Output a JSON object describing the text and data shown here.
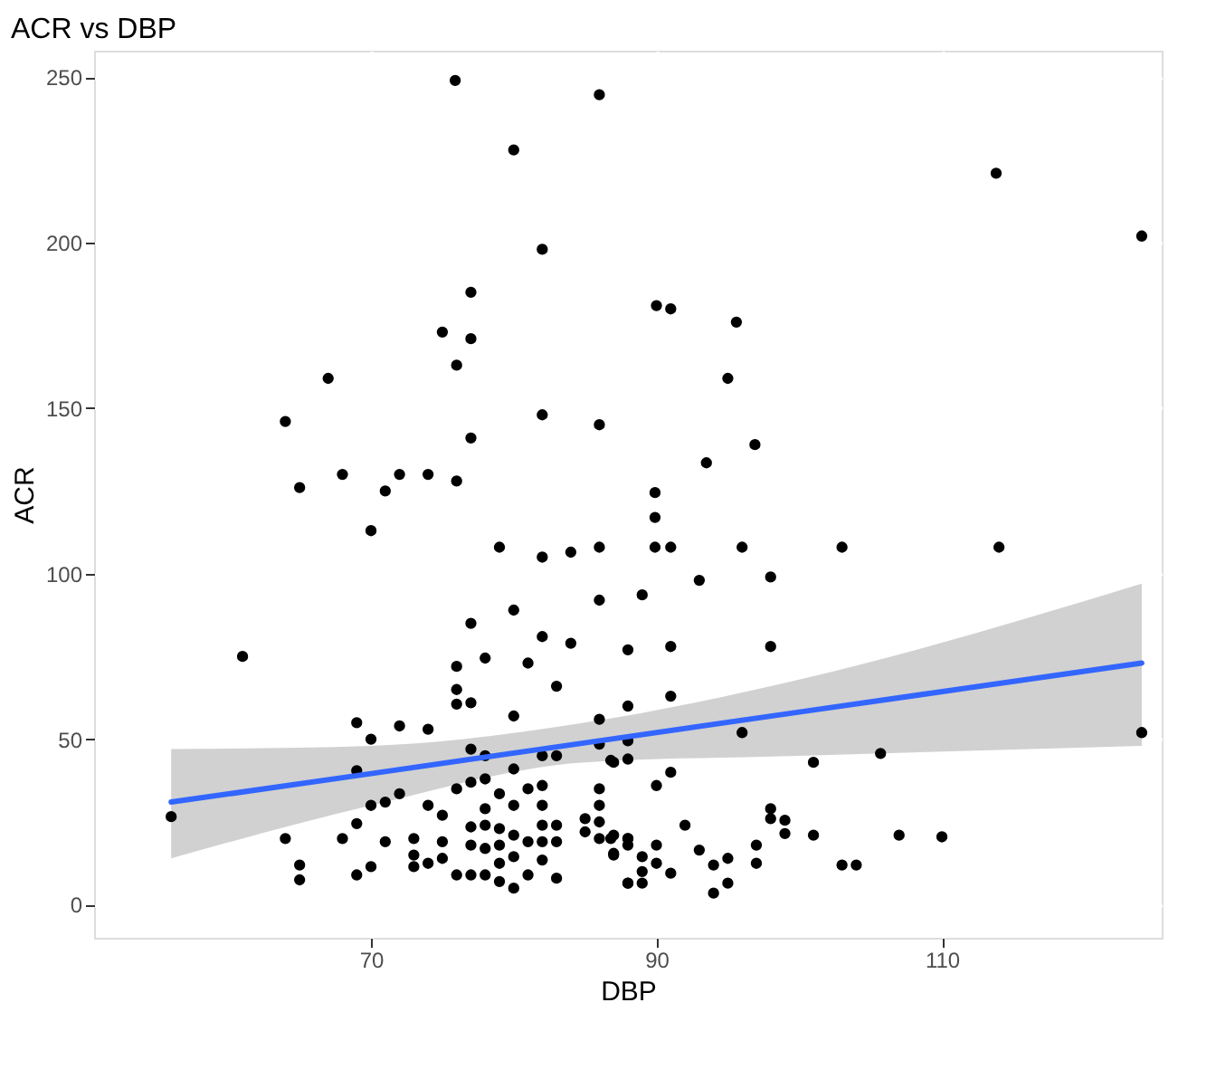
{
  "chart_data": {
    "type": "scatter",
    "title": "ACR vs DBP",
    "xlabel": "DBP",
    "ylabel": "ACR",
    "xlim": [
      50.6,
      125.4
    ],
    "ylim": [
      -10,
      258
    ],
    "xticks": [
      70,
      90,
      110
    ],
    "yticks": [
      0,
      50,
      100,
      150,
      200,
      250
    ],
    "grid": true,
    "marker": "circle",
    "series": [
      {
        "color": "#000000",
        "x": [
          75.9,
          86,
          80,
          82,
          77,
          75,
          77,
          76,
          67,
          64,
          77,
          82,
          86,
          90,
          91,
          95.6,
          113.8,
          124,
          95,
          96.9,
          93.5,
          89.9,
          89.9,
          89.9,
          91,
          96,
          103,
          114,
          93,
          98,
          89,
          88,
          91,
          98,
          91,
          88,
          88,
          96,
          124,
          86.8,
          88,
          91,
          90,
          101,
          105.7,
          92,
          86.8,
          88,
          87,
          88,
          89,
          89,
          89,
          88,
          90,
          90,
          91,
          93,
          94,
          94,
          95,
          95,
          97,
          97,
          98,
          98,
          99,
          99,
          101,
          103,
          104,
          107,
          110,
          65,
          68,
          71,
          72,
          74,
          76,
          70,
          79,
          82,
          84,
          86,
          86,
          77,
          80,
          82,
          84,
          61,
          78,
          81,
          76,
          76,
          76,
          77,
          83,
          80,
          86,
          69,
          72,
          74,
          70,
          69,
          77,
          78,
          82,
          83,
          86,
          87,
          56,
          64,
          65,
          65,
          68,
          69,
          69,
          70,
          70,
          71,
          71,
          72,
          73,
          73,
          73,
          74,
          74,
          75,
          75,
          75,
          76,
          76,
          77,
          77,
          77,
          77,
          78,
          78,
          78,
          78,
          78,
          79,
          79,
          79,
          79,
          79,
          80,
          80,
          80,
          80,
          80,
          81,
          81,
          81,
          82,
          82,
          82,
          82,
          82,
          83,
          83,
          83,
          85,
          85,
          86,
          86,
          86,
          86,
          87,
          87,
          88,
          88
        ],
        "values": [
          249,
          244.7,
          228,
          198,
          185,
          173,
          171,
          163,
          159,
          146,
          141,
          148,
          145,
          181,
          180,
          176,
          221,
          202,
          159,
          139,
          133.5,
          124.5,
          117,
          108,
          108,
          108,
          108,
          108,
          98,
          99,
          93.6,
          77,
          78,
          78,
          63,
          60,
          49.5,
          52,
          52,
          43.6,
          44,
          40,
          36,
          43,
          45.7,
          24,
          20,
          20,
          15,
          18,
          14.5,
          10,
          6.5,
          6.5,
          18,
          12.5,
          9.5,
          16.5,
          12,
          3.5,
          14,
          6.5,
          18,
          12.5,
          29,
          26,
          25.5,
          21.5,
          21,
          12,
          12,
          21,
          20.5,
          126,
          130,
          125,
          130,
          130,
          128,
          113,
          108,
          105,
          106.5,
          108,
          92,
          85,
          89,
          81,
          79,
          75,
          74.5,
          73,
          72,
          65,
          60.6,
          61,
          66,
          57,
          56,
          55,
          54,
          53,
          50,
          40.5,
          47,
          45,
          45,
          45,
          48.5,
          43,
          26.6,
          20,
          12,
          7.5,
          20,
          24.5,
          9,
          30,
          11.5,
          31,
          19,
          33.5,
          20,
          15,
          11.5,
          30,
          12.5,
          27,
          19,
          14,
          35,
          9,
          37,
          23.5,
          18,
          9,
          38,
          29,
          24,
          17,
          9,
          33.5,
          23,
          18,
          12.5,
          7,
          41,
          30,
          21,
          14.5,
          5,
          35,
          19,
          9,
          36,
          30,
          24,
          19,
          13.5,
          24,
          19,
          8,
          26,
          22,
          35,
          30,
          25,
          20,
          21,
          15.5,
          20,
          6.5
        ]
      },
      {
        "type": "line",
        "color": "#3366ff",
        "marker": "none",
        "line_style": "solid",
        "x": [
          56,
          70,
          85,
          100,
          124
        ],
        "values": [
          31,
          39.6,
          48.9,
          58.2,
          73
        ],
        "lower": [
          14,
          30,
          43,
          45,
          48
        ],
        "upper": [
          47,
          48,
          55,
          68,
          97
        ]
      }
    ]
  }
}
